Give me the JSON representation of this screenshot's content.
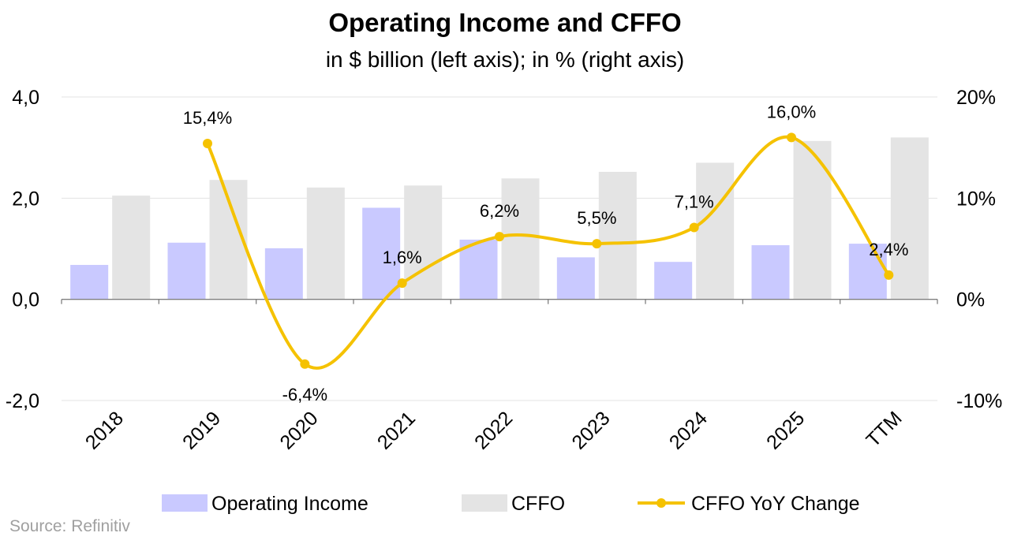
{
  "chart_data": {
    "type": "bar",
    "title": "Operating Income and CFFO",
    "subtitle": "in $ billion (left axis); in % (right axis)",
    "categories": [
      "2018",
      "2019",
      "2020",
      "2021",
      "2022",
      "2023",
      "2024",
      "2025",
      "TTM"
    ],
    "series": [
      {
        "name": "Operating Income",
        "type": "bar",
        "axis": "left",
        "color": "#c9c9ff",
        "values": [
          0.68,
          1.12,
          1.01,
          1.81,
          1.18,
          0.83,
          0.74,
          1.07,
          1.1
        ]
      },
      {
        "name": "CFFO",
        "type": "bar",
        "axis": "left",
        "color": "#e4e4e4",
        "values": [
          2.05,
          2.36,
          2.21,
          2.25,
          2.39,
          2.52,
          2.7,
          3.13,
          3.2
        ]
      },
      {
        "name": "CFFO YoY Change",
        "type": "line",
        "axis": "right",
        "color": "#f5c200",
        "values": [
          null,
          15.4,
          -6.4,
          1.6,
          6.2,
          5.5,
          7.1,
          16.0,
          2.4
        ],
        "labels": [
          "",
          "15,4%",
          "-6,4%",
          "1,6%",
          "6,2%",
          "5,5%",
          "7,1%",
          "16,0%",
          "2,4%"
        ]
      }
    ],
    "y_left": {
      "min": -2,
      "max": 4,
      "ticks": [
        "4,0",
        "2,0",
        "0,0",
        "-2,0"
      ],
      "tick_values": [
        4,
        2,
        0,
        -2
      ]
    },
    "y_right": {
      "min": -10,
      "max": 20,
      "ticks": [
        "20%",
        "10%",
        "0%",
        "-10%"
      ],
      "tick_values": [
        20,
        10,
        0,
        -10
      ]
    },
    "grid": true,
    "legend_position": "bottom"
  },
  "source": "Source: Refinitiv"
}
